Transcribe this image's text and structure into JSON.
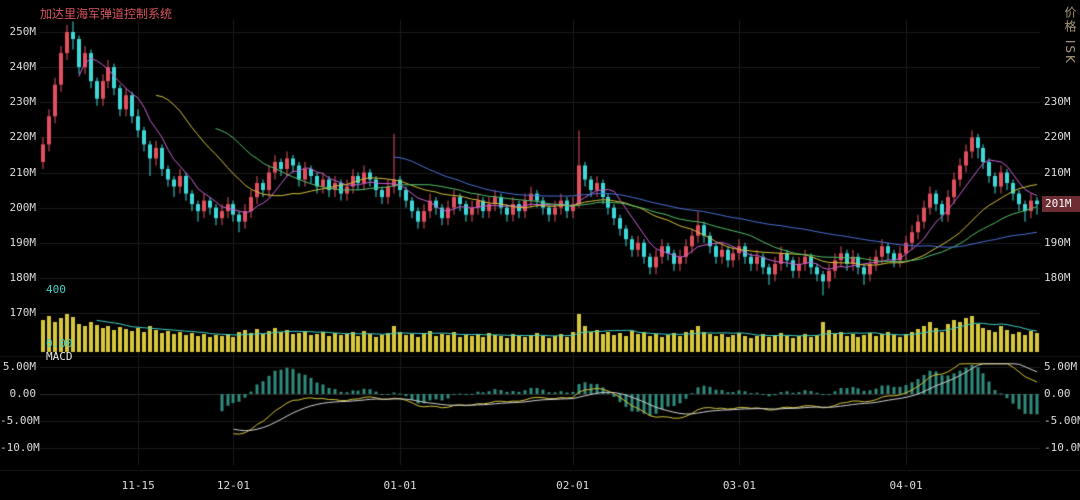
{
  "header": {
    "title": "加达里海军弹道控制系统",
    "price_axis_label": "价格 ISK"
  },
  "panels": {
    "volume_max_label": "400",
    "volume_min_label": "0.00",
    "macd_label": "MACD"
  },
  "current_price": {
    "label": "201M",
    "value": 201
  },
  "colors": {
    "background": "#000000",
    "grid": "#1b1b1b",
    "grid_zero": "#2a2a2a",
    "separator": "#161616",
    "up": "#e1505e",
    "down": "#3fd8d8",
    "volume": "#d6c63c",
    "volume_ma": "#3ecfc6",
    "macd_hist": "#2e8b7d",
    "macd_dif": "#d4c23a",
    "macd_dea": "#d0d0d0",
    "title": "#d8545e",
    "axis_text": "#dcdcdc",
    "current_price_bg": "#6e2c33"
  },
  "axes": {
    "price_left": [
      {
        "label": "250M",
        "value": 250
      },
      {
        "label": "240M",
        "value": 240
      },
      {
        "label": "230M",
        "value": 230
      },
      {
        "label": "220M",
        "value": 220
      },
      {
        "label": "210M",
        "value": 210
      },
      {
        "label": "200M",
        "value": 200
      },
      {
        "label": "190M",
        "value": 190
      },
      {
        "label": "180M",
        "value": 180
      },
      {
        "label": "170M",
        "value": 170
      }
    ],
    "price_right": [
      {
        "label": "230M",
        "value": 230
      },
      {
        "label": "220M",
        "value": 220
      },
      {
        "label": "210M",
        "value": 210
      },
      {
        "label": "190M",
        "value": 190
      },
      {
        "label": "180M",
        "value": 180
      }
    ],
    "macd": [
      {
        "label": "5.00M",
        "value": 5
      },
      {
        "label": "0.00",
        "value": 0
      },
      {
        "label": "-5.00M",
        "value": -5
      },
      {
        "label": "-10.0M",
        "value": -10
      }
    ]
  },
  "chart_data": {
    "type": "candlestick",
    "title": "加达里海军弹道控制系统",
    "ylabel": "价格 ISK",
    "unit": "M ISK",
    "ylim_price": [
      165,
      255
    ],
    "ylim_macd": [
      -11,
      5.6
    ],
    "volume_axis_max": 400,
    "grid": true,
    "x_tick_labels": [
      "11-15",
      "12-01",
      "01-01",
      "02-01",
      "03-01",
      "04-01"
    ],
    "x_tick_indices": [
      16,
      32,
      60,
      89,
      117,
      145
    ],
    "moving_averages": [
      {
        "name": "MA7",
        "color": "#c95fd6",
        "window": 7
      },
      {
        "name": "MA20",
        "color": "#d4c23a",
        "window": 20
      },
      {
        "name": "MA30",
        "color": "#53c06a",
        "window": 30
      },
      {
        "name": "MA60",
        "color": "#4a6fd8",
        "window": 60
      }
    ],
    "macd_params": {
      "fast": 12,
      "slow": 26,
      "signal": 9
    },
    "candles_ohlc": [
      [
        213,
        220,
        211,
        218
      ],
      [
        218,
        228,
        216,
        226
      ],
      [
        226,
        237,
        224,
        235
      ],
      [
        235,
        246,
        233,
        244
      ],
      [
        244,
        252,
        242,
        250
      ],
      [
        250,
        253,
        245,
        248
      ],
      [
        248,
        249,
        238,
        240
      ],
      [
        240,
        246,
        238,
        244
      ],
      [
        244,
        245,
        234,
        236
      ],
      [
        236,
        237,
        229,
        231
      ],
      [
        231,
        238,
        229,
        236
      ],
      [
        236,
        242,
        234,
        240
      ],
      [
        240,
        241,
        232,
        234
      ],
      [
        234,
        235,
        226,
        228
      ],
      [
        228,
        234,
        226,
        232
      ],
      [
        232,
        233,
        224,
        226
      ],
      [
        226,
        228,
        220,
        222
      ],
      [
        222,
        223,
        216,
        218
      ],
      [
        218,
        219,
        209,
        214
      ],
      [
        214,
        219,
        212,
        217
      ],
      [
        217,
        218,
        209,
        211
      ],
      [
        211,
        212,
        206,
        208
      ],
      [
        208,
        209,
        203,
        206
      ],
      [
        206,
        211,
        204,
        209
      ],
      [
        209,
        210,
        202,
        204
      ],
      [
        204,
        205,
        199,
        201
      ],
      [
        201,
        202,
        196,
        199
      ],
      [
        199,
        204,
        197,
        202
      ],
      [
        202,
        203,
        198,
        200
      ],
      [
        200,
        201,
        195,
        197
      ],
      [
        197,
        201,
        195,
        199
      ],
      [
        199,
        203,
        197,
        201
      ],
      [
        201,
        202,
        196,
        198
      ],
      [
        198,
        199,
        193,
        196
      ],
      [
        196,
        201,
        194,
        199
      ],
      [
        199,
        205,
        197,
        203
      ],
      [
        203,
        209,
        201,
        207
      ],
      [
        207,
        208,
        203,
        205
      ],
      [
        205,
        212,
        203,
        210
      ],
      [
        210,
        215,
        208,
        213
      ],
      [
        213,
        214,
        209,
        211
      ],
      [
        211,
        216,
        209,
        214
      ],
      [
        214,
        215,
        210,
        212
      ],
      [
        212,
        213,
        206,
        208
      ],
      [
        208,
        213,
        206,
        211
      ],
      [
        211,
        212,
        207,
        209
      ],
      [
        209,
        210,
        204,
        206
      ],
      [
        206,
        210,
        204,
        208
      ],
      [
        208,
        209,
        203,
        205
      ],
      [
        205,
        209,
        203,
        207
      ],
      [
        207,
        208,
        202,
        204
      ],
      [
        204,
        208,
        202,
        206
      ],
      [
        206,
        211,
        204,
        209
      ],
      [
        209,
        210,
        205,
        207
      ],
      [
        207,
        212,
        205,
        210
      ],
      [
        210,
        211,
        206,
        208
      ],
      [
        208,
        209,
        203,
        205
      ],
      [
        205,
        206,
        201,
        203
      ],
      [
        203,
        208,
        201,
        206
      ],
      [
        206,
        221,
        204,
        208
      ],
      [
        208,
        209,
        203,
        205
      ],
      [
        205,
        206,
        200,
        202
      ],
      [
        202,
        203,
        197,
        199
      ],
      [
        199,
        200,
        194,
        196
      ],
      [
        196,
        201,
        194,
        199
      ],
      [
        199,
        204,
        197,
        202
      ],
      [
        202,
        203,
        198,
        200
      ],
      [
        200,
        201,
        195,
        197
      ],
      [
        197,
        202,
        195,
        200
      ],
      [
        200,
        205,
        198,
        203
      ],
      [
        203,
        204,
        199,
        201
      ],
      [
        201,
        202,
        196,
        198
      ],
      [
        198,
        202,
        196,
        200
      ],
      [
        200,
        204,
        198,
        202
      ],
      [
        202,
        203,
        197,
        199
      ],
      [
        199,
        203,
        197,
        201
      ],
      [
        201,
        205,
        199,
        203
      ],
      [
        203,
        204,
        198,
        200
      ],
      [
        200,
        201,
        196,
        198
      ],
      [
        198,
        203,
        196,
        201
      ],
      [
        201,
        202,
        197,
        199
      ],
      [
        199,
        204,
        197,
        202
      ],
      [
        202,
        206,
        200,
        204
      ],
      [
        204,
        205,
        200,
        202
      ],
      [
        202,
        203,
        198,
        200
      ],
      [
        200,
        201,
        196,
        198
      ],
      [
        198,
        202,
        196,
        200
      ],
      [
        200,
        204,
        198,
        202
      ],
      [
        202,
        203,
        197,
        199
      ],
      [
        199,
        203,
        197,
        201
      ],
      [
        201,
        222,
        200,
        212
      ],
      [
        212,
        213,
        206,
        208
      ],
      [
        208,
        209,
        203,
        205
      ],
      [
        205,
        209,
        203,
        207
      ],
      [
        207,
        208,
        201,
        203
      ],
      [
        203,
        204,
        198,
        200
      ],
      [
        200,
        201,
        195,
        197
      ],
      [
        197,
        198,
        192,
        194
      ],
      [
        194,
        195,
        189,
        191
      ],
      [
        191,
        192,
        186,
        188
      ],
      [
        188,
        192,
        186,
        190
      ],
      [
        190,
        191,
        184,
        186
      ],
      [
        186,
        187,
        181,
        183
      ],
      [
        183,
        188,
        181,
        186
      ],
      [
        186,
        191,
        184,
        189
      ],
      [
        189,
        190,
        185,
        187
      ],
      [
        187,
        188,
        182,
        184
      ],
      [
        184,
        188,
        182,
        186
      ],
      [
        186,
        191,
        184,
        189
      ],
      [
        189,
        194,
        187,
        192
      ],
      [
        192,
        199,
        190,
        195
      ],
      [
        195,
        196,
        190,
        192
      ],
      [
        192,
        193,
        187,
        189
      ],
      [
        189,
        190,
        184,
        186
      ],
      [
        186,
        190,
        184,
        188
      ],
      [
        188,
        189,
        183,
        185
      ],
      [
        185,
        189,
        183,
        187
      ],
      [
        187,
        191,
        185,
        189
      ],
      [
        189,
        190,
        184,
        186
      ],
      [
        186,
        187,
        182,
        184
      ],
      [
        184,
        188,
        182,
        186
      ],
      [
        186,
        187,
        181,
        183
      ],
      [
        183,
        184,
        178,
        181
      ],
      [
        181,
        186,
        179,
        184
      ],
      [
        184,
        189,
        182,
        187
      ],
      [
        187,
        188,
        183,
        185
      ],
      [
        185,
        186,
        180,
        182
      ],
      [
        182,
        186,
        180,
        184
      ],
      [
        184,
        188,
        182,
        186
      ],
      [
        186,
        187,
        181,
        183
      ],
      [
        183,
        184,
        179,
        181
      ],
      [
        181,
        182,
        175,
        179
      ],
      [
        179,
        184,
        177,
        182
      ],
      [
        182,
        187,
        180,
        185
      ],
      [
        185,
        189,
        183,
        187
      ],
      [
        187,
        188,
        182,
        184
      ],
      [
        184,
        188,
        182,
        186
      ],
      [
        186,
        187,
        181,
        183
      ],
      [
        183,
        184,
        178,
        181
      ],
      [
        181,
        186,
        179,
        184
      ],
      [
        184,
        188,
        182,
        186
      ],
      [
        186,
        191,
        184,
        189
      ],
      [
        189,
        190,
        185,
        187
      ],
      [
        187,
        188,
        183,
        185
      ],
      [
        185,
        189,
        183,
        187
      ],
      [
        187,
        192,
        185,
        190
      ],
      [
        190,
        195,
        188,
        193
      ],
      [
        193,
        198,
        191,
        196
      ],
      [
        196,
        202,
        194,
        200
      ],
      [
        200,
        206,
        198,
        204
      ],
      [
        204,
        205,
        199,
        201
      ],
      [
        201,
        202,
        196,
        198
      ],
      [
        198,
        205,
        196,
        203
      ],
      [
        203,
        210,
        201,
        208
      ],
      [
        208,
        214,
        206,
        212
      ],
      [
        212,
        218,
        210,
        216
      ],
      [
        216,
        222,
        214,
        220
      ],
      [
        220,
        221,
        214,
        217
      ],
      [
        217,
        218,
        211,
        213
      ],
      [
        213,
        214,
        207,
        209
      ],
      [
        209,
        210,
        204,
        206
      ],
      [
        206,
        212,
        204,
        210
      ],
      [
        210,
        211,
        205,
        207
      ],
      [
        207,
        208,
        202,
        204
      ],
      [
        204,
        205,
        199,
        201
      ],
      [
        201,
        202,
        196,
        199
      ],
      [
        199,
        204,
        197,
        202
      ],
      [
        202,
        203,
        198,
        201
      ]
    ],
    "volumes": [
      320,
      360,
      300,
      340,
      380,
      350,
      280,
      260,
      300,
      270,
      240,
      260,
      220,
      250,
      230,
      210,
      240,
      200,
      260,
      220,
      190,
      210,
      180,
      200,
      170,
      190,
      160,
      180,
      150,
      170,
      160,
      180,
      150,
      200,
      220,
      190,
      230,
      180,
      210,
      240,
      200,
      220,
      180,
      190,
      210,
      170,
      180,
      200,
      160,
      190,
      170,
      180,
      200,
      160,
      210,
      180,
      150,
      170,
      190,
      260,
      200,
      170,
      180,
      150,
      190,
      210,
      160,
      180,
      170,
      200,
      150,
      170,
      160,
      180,
      150,
      190,
      170,
      160,
      140,
      180,
      160,
      150,
      170,
      190,
      160,
      140,
      160,
      180,
      150,
      200,
      380,
      260,
      200,
      220,
      180,
      200,
      170,
      190,
      160,
      210,
      180,
      200,
      160,
      180,
      150,
      170,
      190,
      160,
      200,
      220,
      260,
      200,
      180,
      160,
      180,
      150,
      170,
      190,
      160,
      140,
      160,
      180,
      150,
      170,
      190,
      160,
      140,
      160,
      180,
      150,
      170,
      300,
      220,
      180,
      200,
      160,
      180,
      150,
      170,
      190,
      160,
      180,
      200,
      170,
      150,
      180,
      200,
      230,
      260,
      300,
      240,
      200,
      280,
      320,
      300,
      340,
      360,
      280,
      240,
      220,
      200,
      260,
      220,
      180,
      200,
      170,
      210,
      190
    ]
  }
}
